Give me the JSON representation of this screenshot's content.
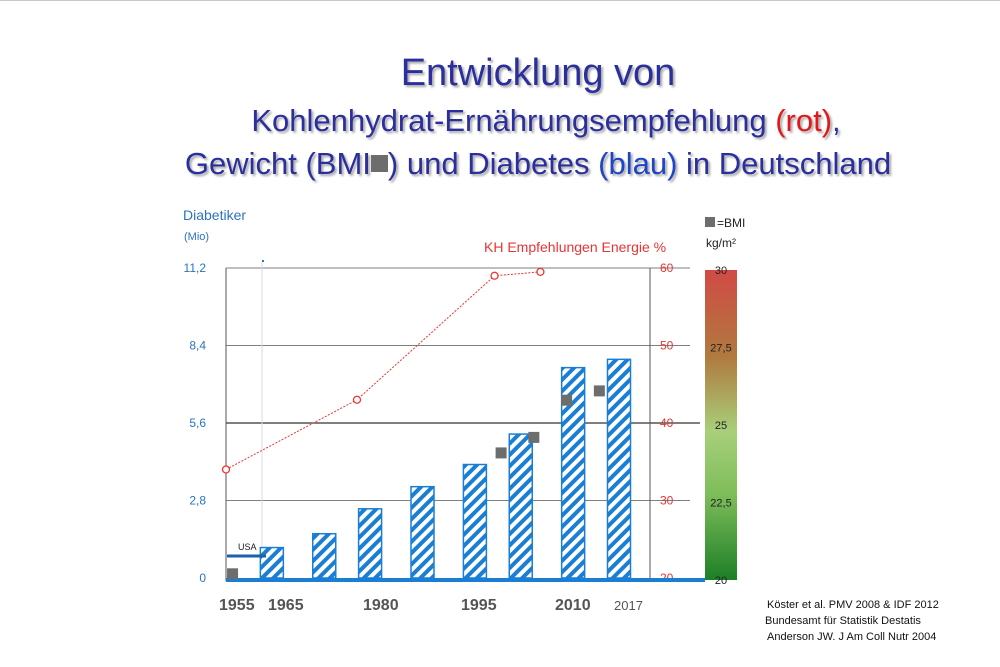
{
  "title": {
    "line1": "Entwicklung von",
    "line2_a": "Kohlenhydrat-Ernährungsempfehlung ",
    "line2_b": "(rot)",
    "line2_c": ",",
    "line3_a": "Gewicht  (BMI",
    "line3_b": ") und Diabetes ",
    "line3_c": "(blau)",
    "line3_d": " in Deutschland"
  },
  "chart_data": {
    "type": "bar",
    "x_ticks": [
      "1955",
      "1965",
      "1980",
      "1995",
      "2010",
      "2017"
    ],
    "left_axis": {
      "label": "Diabetiker",
      "unit": "(Mio)",
      "ticks": [
        "0",
        "2,8",
        "5,6",
        "8,4",
        "11,2"
      ],
      "ylim": [
        0,
        11.2
      ]
    },
    "right_axis": {
      "label": "KH Empfehlungen Energie %",
      "ticks": [
        "20",
        "30",
        "40",
        "50",
        "60"
      ],
      "ylim": [
        20,
        60
      ]
    },
    "bmi_scale": {
      "legend": "=BMI",
      "unit": "kg/m²",
      "ticks": [
        "30",
        "27,5",
        "25",
        "22,5",
        "20"
      ],
      "ylim": [
        20,
        30
      ]
    },
    "diabetes_bars": [
      {
        "year": 1962,
        "value": 1.1
      },
      {
        "year": 1970,
        "value": 1.6
      },
      {
        "year": 1977,
        "value": 2.5
      },
      {
        "year": 1985,
        "value": 3.3
      },
      {
        "year": 1993,
        "value": 4.1
      },
      {
        "year": 2000,
        "value": 5.2
      },
      {
        "year": 2008,
        "value": 7.6
      },
      {
        "year": 2015,
        "value": 7.9
      }
    ],
    "kh_recommendation": [
      {
        "year": 1955,
        "value": 34
      },
      {
        "year": 1975,
        "value": 43
      },
      {
        "year": 1996,
        "value": 59
      },
      {
        "year": 2003,
        "value": 59.5
      }
    ],
    "bmi": [
      {
        "year": 1956,
        "value": 20.2
      },
      {
        "year": 1997,
        "value": 24.1
      },
      {
        "year": 2002,
        "value": 24.6
      },
      {
        "year": 2007,
        "value": 25.8
      },
      {
        "year": 2012,
        "value": 26.1
      }
    ],
    "usa_label": "USA",
    "bar_color": "#1a7fd4",
    "kh_color": "#ee3333",
    "bmi_color": "#6d6d6d"
  },
  "citations": [
    "Köster et al. PMV 2008 & IDF 2012",
    "Bundesamt für Statistik Destatis",
    "Anderson JW. J Am Coll Nutr 2004"
  ]
}
